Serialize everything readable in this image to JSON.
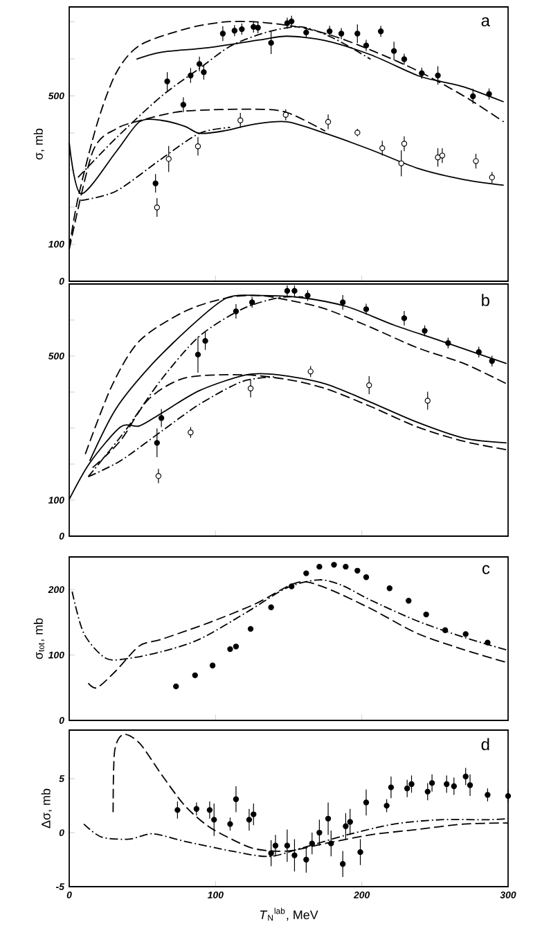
{
  "chart_data": [
    {
      "type": "line",
      "ylabel": "σ, mb",
      "annotations": [
        "a"
      ],
      "xlim": [
        0,
        300
      ],
      "xticks": [
        0,
        100,
        200,
        300
      ],
      "ylim": [
        0,
        740
      ],
      "yticks": [
        0,
        100,
        {
          "value": 200,
          "label": null
        },
        {
          "value": 300,
          "label": null
        },
        {
          "value": 400,
          "label": null
        },
        500,
        {
          "value": 600,
          "label": null
        },
        {
          "value": 700,
          "label": null
        }
      ],
      "tick_labels": "y",
      "series": [
        {
          "line_style": "dashed",
          "color": "#000000",
          "x": [
            0,
            6,
            19,
            32,
            48,
            79,
            105,
            130,
            159,
            181,
            206,
            238,
            270,
            297
          ],
          "values": [
            90,
            224,
            424,
            561,
            636,
            680,
            699,
            699,
            684,
            661,
            624,
            568,
            499,
            430
          ]
        },
        {
          "line_style": "solid",
          "color": "#000000",
          "x": [
            46,
            63,
            95,
            130,
            149,
            175,
            206,
            238,
            254,
            270,
            297
          ],
          "values": [
            599,
            618,
            630,
            651,
            661,
            649,
            611,
            555,
            539,
            524,
            484
          ]
        },
        {
          "line_style": "dashdot",
          "color": "#000000",
          "x": [
            6,
            32,
            63,
            89,
            111,
            137,
            159,
            181,
            206
          ],
          "values": [
            280,
            386,
            499,
            574,
            636,
            674,
            686,
            655,
            599
          ]
        },
        {
          "line_style": "solid",
          "color": "#000000",
          "x": [
            0,
            8,
            32,
            48,
            63,
            79,
            89,
            105,
            127,
            149,
            175,
            206,
            238,
            270,
            297
          ],
          "values": [
            374,
            236,
            349,
            430,
            434,
            418,
            399,
            405,
            424,
            430,
            399,
            355,
            305,
            274,
            259
          ]
        },
        {
          "line_style": "dashed",
          "color": "#000000",
          "x": [
            0,
            16,
            32,
            51,
            79,
            127,
            149,
            175
          ],
          "values": [
            86,
            349,
            411,
            436,
            459,
            464,
            455,
            405
          ]
        },
        {
          "line_style": "dashdot",
          "color": "#000000",
          "x": [
            8,
            32,
            63,
            89,
            110
          ],
          "values": [
            218,
            243,
            330,
            399,
            415
          ]
        },
        {
          "type": "scatter",
          "marker": "circle",
          "color": "#000000",
          "x": [
            59,
            67,
            78,
            83,
            89,
            92,
            105,
            113,
            118,
            126,
            129,
            138,
            149,
            152,
            162,
            178,
            186,
            197,
            203,
            213,
            222,
            229,
            241,
            252,
            276,
            287
          ],
          "values": [
            264,
            539,
            476,
            555,
            586,
            564,
            668,
            676,
            680,
            686,
            684,
            643,
            696,
            701,
            671,
            674,
            668,
            668,
            636,
            674,
            621,
            599,
            561,
            555,
            499,
            505
          ],
          "errors": [
            25,
            25,
            20,
            20,
            20,
            20,
            20,
            15,
            15,
            15,
            15,
            30,
            15,
            15,
            15,
            15,
            15,
            25,
            15,
            15,
            25,
            15,
            15,
            25,
            20,
            15
          ]
        },
        {
          "type": "scatter",
          "marker": "circle",
          "color": "#ffffff",
          "x": [
            60,
            68,
            88,
            117,
            148,
            177,
            197,
            214,
            227,
            229,
            252,
            255,
            278,
            289
          ],
          "values": [
            199,
            330,
            364,
            434,
            449,
            430,
            401,
            359,
            318,
            371,
            334,
            339,
            324,
            280
          ],
          "errors": [
            25,
            35,
            25,
            20,
            15,
            20,
            10,
            20,
            35,
            20,
            25,
            20,
            20,
            15
          ]
        }
      ]
    },
    {
      "type": "line",
      "annotations": [
        "b"
      ],
      "xlim": [
        0,
        300
      ],
      "xticks": [
        0,
        100,
        200,
        300
      ],
      "ylim": [
        0,
        700
      ],
      "yticks": [
        0,
        100,
        {
          "value": 200,
          "label": null
        },
        {
          "value": 300,
          "label": null
        },
        {
          "value": 400,
          "label": null
        },
        500,
        {
          "value": 600,
          "label": null
        }
      ],
      "tick_labels": "y",
      "series": [
        {
          "line_style": "solid",
          "color": "#000000",
          "x": [
            14,
            32,
            57,
            86,
            108,
            130,
            159,
            190,
            222,
            254,
            299
          ],
          "values": [
            209,
            354,
            479,
            593,
            662,
            668,
            662,
            637,
            586,
            542,
            479
          ]
        },
        {
          "line_style": "dashed",
          "color": "#000000",
          "x": [
            11,
            29,
            48,
            79,
            108,
            130,
            150,
            175,
            206,
            238,
            270,
            299
          ],
          "values": [
            228,
            416,
            542,
            624,
            662,
            668,
            655,
            631,
            580,
            523,
            479,
            423
          ]
        },
        {
          "line_style": "dashdot",
          "color": "#000000",
          "x": [
            13,
            38,
            63,
            89,
            118,
            143,
            160
          ],
          "values": [
            165,
            291,
            435,
            555,
            630,
            662,
            664
          ]
        },
        {
          "line_style": "solid",
          "color": "#000000",
          "x": [
            0,
            14,
            35,
            48,
            63,
            89,
            121,
            143,
            175,
            206,
            238,
            270,
            299
          ],
          "values": [
            102,
            203,
            303,
            306,
            341,
            404,
            448,
            448,
            423,
            372,
            316,
            272,
            259
          ]
        },
        {
          "line_style": "dashed",
          "color": "#000000",
          "x": [
            16,
            35,
            54,
            79,
            118,
            149,
            175,
            206,
            238,
            270,
            299
          ],
          "values": [
            190,
            265,
            379,
            439,
            448,
            435,
            410,
            360,
            303,
            263,
            240
          ]
        },
        {
          "line_style": "dashdot",
          "color": "#000000",
          "x": [
            13,
            35,
            63,
            89,
            118,
            140
          ],
          "values": [
            165,
            209,
            291,
            366,
            429,
            442
          ]
        },
        {
          "type": "scatter",
          "marker": "circle",
          "color": "#000000",
          "x": [
            60,
            63,
            88,
            93,
            114,
            125,
            149,
            154,
            163,
            187,
            203,
            229,
            243,
            259,
            280,
            289
          ],
          "values": [
            259,
            328,
            504,
            542,
            624,
            649,
            681,
            681,
            668,
            649,
            630,
            605,
            570,
            536,
            511,
            486
          ],
          "errors": [
            40,
            25,
            50,
            25,
            20,
            15,
            15,
            15,
            15,
            20,
            15,
            20,
            15,
            15,
            15,
            15
          ]
        },
        {
          "type": "scatter",
          "marker": "circle",
          "color": "#ffffff",
          "x": [
            61,
            83,
            124,
            165,
            205,
            245
          ],
          "values": [
            167,
            288,
            410,
            457,
            419,
            376
          ],
          "errors": [
            20,
            15,
            25,
            15,
            25,
            25
          ]
        }
      ]
    },
    {
      "type": "line",
      "ylabel": "σ$_{tot}$, mb",
      "annotations": [
        "c"
      ],
      "xlim": [
        0,
        300
      ],
      "xticks": [
        0,
        100,
        200,
        300
      ],
      "ylim": [
        0,
        250
      ],
      "yticks": [
        0,
        100,
        200
      ],
      "tick_labels": "y",
      "series": [
        {
          "line_style": "dashdot",
          "color": "#000000",
          "x": [
            2,
            10,
            25,
            41,
            63,
            89,
            121,
            149,
            171,
            187,
            206,
            238,
            270,
            300
          ],
          "values": [
            197,
            133,
            95,
            95,
            105,
            124,
            165,
            203,
            215,
            206,
            184,
            152,
            127,
            107
          ]
        },
        {
          "line_style": "dashed",
          "color": "#000000",
          "x": [
            13,
            19,
            32,
            48,
            63,
            95,
            127,
            156,
            175,
            206,
            238,
            270,
            300
          ],
          "values": [
            57,
            50,
            76,
            114,
            124,
            149,
            178,
            211,
            203,
            171,
            133,
            108,
            88
          ]
        },
        {
          "type": "scatter",
          "marker": "circle",
          "color": "#000000",
          "x": [
            73,
            86,
            98,
            110,
            114,
            124,
            138,
            152,
            162,
            171,
            181,
            189,
            197,
            203,
            219,
            232,
            244,
            257,
            271,
            286
          ],
          "values": [
            52,
            69,
            84,
            109,
            113,
            140,
            173,
            205,
            225,
            235,
            238,
            235,
            229,
            219,
            202,
            183,
            162,
            138,
            132,
            119
          ]
        }
      ]
    },
    {
      "type": "line",
      "ylabel": "Δσ, mb",
      "xlabel": "*T*$_{N}$$^{lab}$, MeV",
      "annotations": [
        "d"
      ],
      "xlim": [
        0,
        300
      ],
      "xticks": [
        0,
        100,
        200,
        300
      ],
      "ylim": [
        -5,
        9.5
      ],
      "yticks": [
        -5,
        0,
        5
      ],
      "series": [
        {
          "line_style": "dashed",
          "color": "#000000",
          "x": [
            30,
            31,
            37,
            48,
            63,
            79,
            95,
            111,
            127,
            149,
            175,
            206,
            238,
            270,
            300
          ],
          "values": [
            1.9,
            7.5,
            9.1,
            8.3,
            5.4,
            2.5,
            0.6,
            -0.6,
            -1.5,
            -1.7,
            -1.0,
            -0.2,
            0.3,
            0.8,
            0.9
          ]
        },
        {
          "line_style": "dashdot",
          "color": "#000000",
          "x": [
            10,
            22,
            41,
            57,
            79,
            111,
            137,
            162,
            190,
            222,
            254,
            286,
            300
          ],
          "values": [
            0.8,
            -0.4,
            -0.6,
            -0.1,
            -0.8,
            -1.7,
            -2.2,
            -1.3,
            -0.2,
            0.8,
            1.2,
            1.2,
            1.3
          ]
        },
        {
          "type": "scatter",
          "marker": "circle",
          "color": "#000000",
          "x": [
            74,
            87,
            96,
            99,
            110,
            114,
            123,
            126,
            138,
            141,
            149,
            154,
            162,
            166,
            171,
            177,
            179,
            187,
            189,
            192,
            199,
            203,
            217,
            220,
            231,
            234,
            245,
            248,
            258,
            263,
            271,
            274,
            286,
            300
          ],
          "values": [
            2.1,
            2.2,
            2.1,
            1.2,
            0.8,
            3.1,
            1.2,
            1.7,
            -1.9,
            -1.2,
            -1.2,
            -2.1,
            -2.5,
            -1.0,
            0.0,
            1.3,
            -1.0,
            -2.9,
            0.6,
            1.0,
            -1.8,
            2.8,
            2.5,
            4.2,
            4.1,
            4.5,
            3.8,
            4.6,
            4.5,
            4.3,
            5.2,
            4.4,
            3.5,
            3.4
          ],
          "errors": [
            0.8,
            0.6,
            0.8,
            1.5,
            0.6,
            1.2,
            1.0,
            1.0,
            1.2,
            1.0,
            1.5,
            1.5,
            1.2,
            1.0,
            1.2,
            1.5,
            1.2,
            1.2,
            1.2,
            1.2,
            1.2,
            1.2,
            0.6,
            1.0,
            0.8,
            0.8,
            0.8,
            0.8,
            0.8,
            0.8,
            0.8,
            1.0,
            0.6,
            0.6
          ]
        }
      ]
    }
  ]
}
